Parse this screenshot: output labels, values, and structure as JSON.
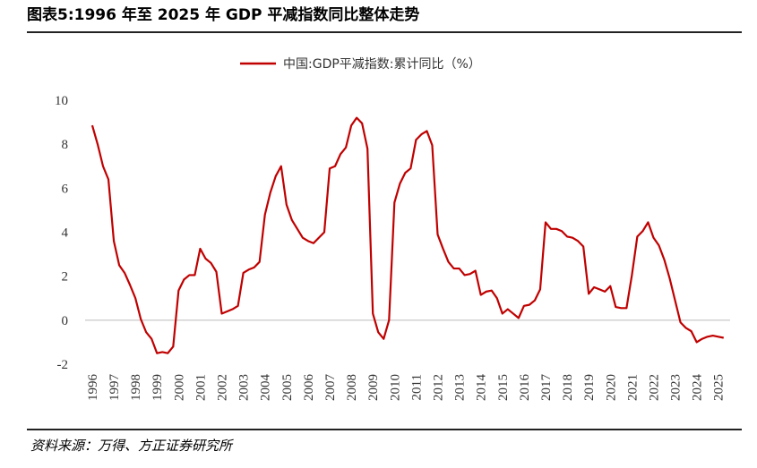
{
  "chart_data": {
    "type": "line",
    "title": "图表5:1996 年至 2025 年 GDP 平减指数同比整体走势",
    "source": "资料来源：万得、方正证券研究所",
    "x": [
      1996,
      1996.25,
      1996.5,
      1996.75,
      1997,
      1997.25,
      1997.5,
      1997.75,
      1998,
      1998.25,
      1998.5,
      1998.75,
      1999,
      1999.25,
      1999.5,
      1999.75,
      2000,
      2000.25,
      2000.5,
      2000.75,
      2001,
      2001.25,
      2001.5,
      2001.75,
      2002,
      2002.25,
      2002.5,
      2002.75,
      2003,
      2003.25,
      2003.5,
      2003.75,
      2004,
      2004.25,
      2004.5,
      2004.75,
      2005,
      2005.25,
      2005.5,
      2005.75,
      2006,
      2006.25,
      2006.5,
      2006.75,
      2007,
      2007.25,
      2007.5,
      2007.75,
      2008,
      2008.25,
      2008.5,
      2008.75,
      2009,
      2009.25,
      2009.5,
      2009.75,
      2010,
      2010.25,
      2010.5,
      2010.75,
      2011,
      2011.25,
      2011.5,
      2011.75,
      2012,
      2012.25,
      2012.5,
      2012.75,
      2013,
      2013.25,
      2013.5,
      2013.75,
      2014,
      2014.25,
      2014.5,
      2014.75,
      2015,
      2015.25,
      2015.5,
      2015.75,
      2016,
      2016.25,
      2016.5,
      2016.75,
      2017,
      2017.25,
      2017.5,
      2017.75,
      2018,
      2018.25,
      2018.5,
      2018.75,
      2019,
      2019.25,
      2019.5,
      2019.75,
      2020,
      2020.25,
      2020.5,
      2020.75,
      2021,
      2021.25,
      2021.5,
      2021.75,
      2022,
      2022.25,
      2022.5,
      2022.75,
      2023,
      2023.25,
      2023.5,
      2023.75,
      2024,
      2024.25,
      2024.5,
      2024.75,
      2025,
      2025.25
    ],
    "series": [
      {
        "name": "中国:GDP平减指数:累计同比（%）",
        "color": "#c00000",
        "values": [
          8.86,
          8.0,
          7.0,
          6.4,
          3.6,
          2.5,
          2.15,
          1.6,
          1.0,
          0.05,
          -0.55,
          -0.85,
          -1.5,
          -1.45,
          -1.5,
          -1.2,
          1.35,
          1.85,
          2.05,
          2.05,
          3.25,
          2.8,
          2.6,
          2.2,
          0.3,
          0.4,
          0.5,
          0.65,
          2.15,
          2.3,
          2.4,
          2.65,
          4.8,
          5.8,
          6.55,
          7.0,
          5.25,
          4.55,
          4.15,
          3.75,
          3.6,
          3.5,
          3.75,
          4.0,
          6.9,
          7.0,
          7.55,
          7.85,
          8.85,
          9.2,
          8.95,
          7.8,
          0.3,
          -0.55,
          -0.85,
          0.0,
          5.35,
          6.2,
          6.7,
          6.9,
          8.2,
          8.45,
          8.6,
          7.95,
          3.9,
          3.25,
          2.65,
          2.35,
          2.35,
          2.05,
          2.1,
          2.25,
          1.15,
          1.3,
          1.35,
          1.0,
          0.3,
          0.5,
          0.3,
          0.1,
          0.65,
          0.7,
          0.9,
          1.4,
          4.45,
          4.15,
          4.15,
          4.05,
          3.8,
          3.75,
          3.6,
          3.35,
          1.2,
          1.5,
          1.4,
          1.3,
          1.55,
          0.6,
          0.55,
          0.55,
          2.05,
          3.8,
          4.05,
          4.45,
          3.75,
          3.4,
          2.75,
          1.9,
          0.9,
          -0.1,
          -0.35,
          -0.5,
          -1.0,
          -0.85,
          -0.75,
          -0.7,
          -0.75,
          -0.8
        ]
      }
    ],
    "xlim": [
      1995.67,
      2025.55
    ],
    "xticks": [
      1996,
      1997,
      1998,
      1999,
      2000,
      2001,
      2002,
      2003,
      2004,
      2005,
      2006,
      2007,
      2008,
      2009,
      2010,
      2011,
      2012,
      2013,
      2014,
      2015,
      2016,
      2017,
      2018,
      2019,
      2020,
      2021,
      2022,
      2023,
      2024,
      2025
    ],
    "ylim": [
      -2,
      10
    ],
    "yticks": [
      -2,
      0,
      2,
      4,
      6,
      8,
      10
    ],
    "grid": false,
    "legend": "top"
  }
}
